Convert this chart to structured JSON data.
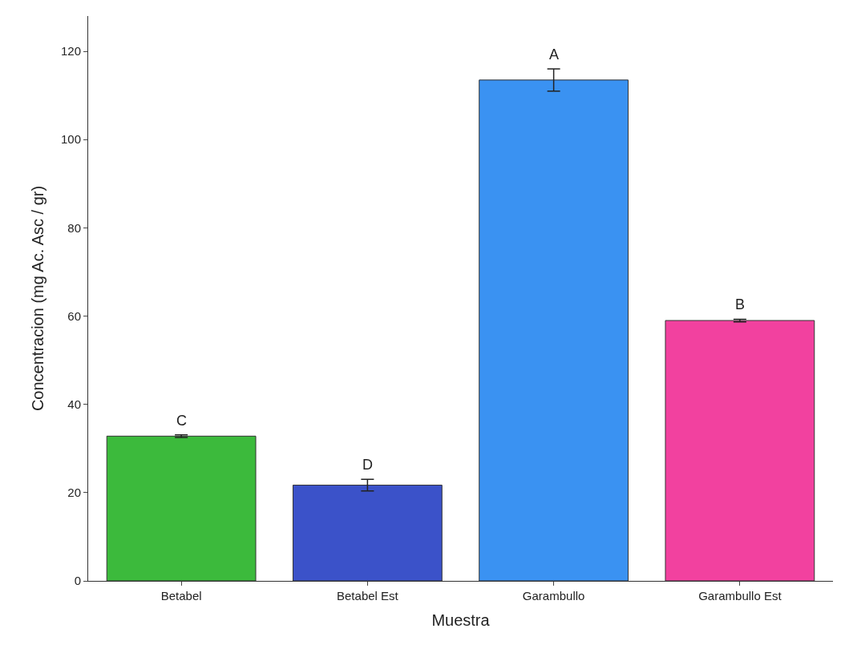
{
  "chart_data": {
    "type": "bar",
    "xlabel": "Muestra",
    "ylabel": "Concentracion (mg Ac. Asc / gr)",
    "categories": [
      "Betabel",
      "Betabel Est",
      "Garambullo",
      "Garambullo Est"
    ],
    "values": [
      32.8,
      21.7,
      113.5,
      59.0
    ],
    "errors": [
      0.3,
      1.3,
      2.5,
      0.3
    ],
    "colors": [
      "#3cba3c",
      "#3b52c9",
      "#3a92f2",
      "#f2419f"
    ],
    "ylim": [
      0,
      128
    ],
    "yticks": [
      0,
      20,
      40,
      60,
      80,
      100,
      120
    ],
    "annotations": [
      {
        "text": "C",
        "x": "Betabel",
        "y": 33.1
      },
      {
        "text": "D",
        "x": "Betabel Est",
        "y": 23.0
      },
      {
        "text": "A",
        "x": "Garambullo",
        "y": 116.0
      },
      {
        "text": "B",
        "x": "Garambullo Est",
        "y": 59.3
      }
    ]
  }
}
